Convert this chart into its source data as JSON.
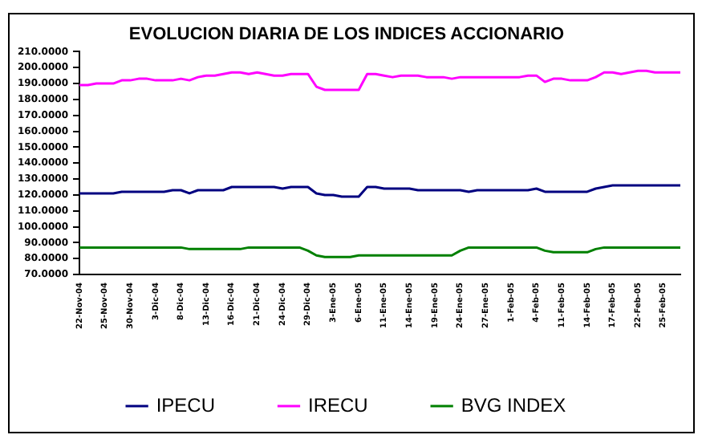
{
  "chart_data": {
    "type": "line",
    "title": "EVOLUCION DIARIA DE LOS INDICES ACCIONARIO",
    "categories": [
      "22-Nov-04",
      null,
      null,
      "25-Nov-04",
      null,
      null,
      "30-Nov-04",
      null,
      null,
      "3-Dic-04",
      null,
      null,
      "8-Dic-04",
      null,
      null,
      "13-Dic-04",
      null,
      null,
      "16-Dic-04",
      null,
      null,
      "21-Dic-04",
      null,
      null,
      "24-Dic-04",
      null,
      null,
      "29-Dic-04",
      null,
      null,
      "3-Ene-05",
      null,
      null,
      "6-Ene-05",
      null,
      null,
      "11-Ene-05",
      null,
      null,
      "14-Ene-05",
      null,
      null,
      "19-Ene-05",
      null,
      null,
      "24-Ene-05",
      null,
      null,
      "27-Ene-05",
      null,
      null,
      "1-Feb-05",
      null,
      null,
      "4-Feb-05",
      null,
      null,
      "11-Feb-05",
      null,
      null,
      "14-Feb-05",
      null,
      null,
      "17-Feb-05",
      null,
      null,
      "22-Feb-05",
      null,
      null,
      "25-Feb-05",
      null,
      null
    ],
    "series": [
      {
        "name": "IPECU",
        "color": "#000080",
        "values": [
          121,
          121,
          121,
          121,
          121,
          122,
          122,
          122,
          122,
          122,
          122,
          123,
          123,
          121,
          123,
          123,
          123,
          123,
          125,
          125,
          125,
          125,
          125,
          125,
          124,
          125,
          125,
          125,
          121,
          120,
          120,
          119,
          119,
          119,
          125,
          125,
          124,
          124,
          124,
          124,
          123,
          123,
          123,
          123,
          123,
          123,
          122,
          123,
          123,
          123,
          123,
          123,
          123,
          123,
          124,
          122,
          122,
          122,
          122,
          122,
          122,
          124,
          125,
          126,
          126,
          126,
          126,
          126,
          126,
          126,
          126,
          126
        ]
      },
      {
        "name": "IRECU",
        "color": "#ff00ff",
        "values": [
          189,
          189,
          190,
          190,
          190,
          192,
          192,
          193,
          193,
          192,
          192,
          192,
          193,
          192,
          194,
          195,
          195,
          196,
          197,
          197,
          196,
          197,
          196,
          195,
          195,
          196,
          196,
          196,
          188,
          186,
          186,
          186,
          186,
          186,
          196,
          196,
          195,
          194,
          195,
          195,
          195,
          194,
          194,
          194,
          193,
          194,
          194,
          194,
          194,
          194,
          194,
          194,
          194,
          195,
          195,
          191,
          193,
          193,
          192,
          192,
          192,
          194,
          197,
          197,
          196,
          197,
          198,
          198,
          197,
          197,
          197,
          197
        ]
      },
      {
        "name": "BVG INDEX",
        "color": "#008000",
        "values": [
          87,
          87,
          87,
          87,
          87,
          87,
          87,
          87,
          87,
          87,
          87,
          87,
          87,
          86,
          86,
          86,
          86,
          86,
          86,
          86,
          87,
          87,
          87,
          87,
          87,
          87,
          87,
          85,
          82,
          81,
          81,
          81,
          81,
          82,
          82,
          82,
          82,
          82,
          82,
          82,
          82,
          82,
          82,
          82,
          82,
          85,
          87,
          87,
          87,
          87,
          87,
          87,
          87,
          87,
          87,
          85,
          84,
          84,
          84,
          84,
          84,
          86,
          87,
          87,
          87,
          87,
          87,
          87,
          87,
          87,
          87,
          87
        ]
      }
    ],
    "ylim": [
      70,
      210
    ],
    "yticks": [
      {
        "value": 70,
        "label": "70.0000"
      },
      {
        "value": 80,
        "label": "80.0000"
      },
      {
        "value": 90,
        "label": "90.0000"
      },
      {
        "value": 100,
        "label": "100.0000"
      },
      {
        "value": 110,
        "label": "110.0000"
      },
      {
        "value": 120,
        "label": "120.0000"
      },
      {
        "value": 130,
        "label": "130.0000"
      },
      {
        "value": 140,
        "label": "140.0000"
      },
      {
        "value": 150,
        "label": "150.0000"
      },
      {
        "value": 160,
        "label": "160.0000"
      },
      {
        "value": 170,
        "label": "170.0000"
      },
      {
        "value": 180,
        "label": "180.0000"
      },
      {
        "value": 190,
        "label": "190.0000"
      },
      {
        "value": 200,
        "label": "200.0000"
      },
      {
        "value": 210,
        "label": "210.0000"
      }
    ],
    "grid": false,
    "legend": "bottom",
    "marker": "none",
    "line_style": "solid"
  }
}
